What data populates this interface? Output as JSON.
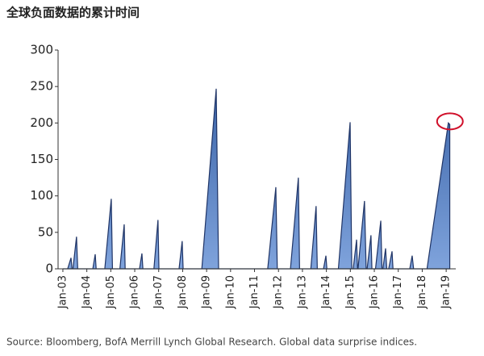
{
  "chart_data": {
    "type": "area",
    "title": "全球负面数据的累计时间",
    "source": "Source: Bloomberg, BofA Merrill Lynch Global Research. Global data surprise indices.",
    "color": "#4a74b8",
    "xlim": [
      2002.8,
      2019.4
    ],
    "xticks": [
      {
        "value": 2003,
        "label": "Jan-03"
      },
      {
        "value": 2004,
        "label": "Jan-04"
      },
      {
        "value": 2005,
        "label": "Jan-05"
      },
      {
        "value": 2006,
        "label": "Jan-06"
      },
      {
        "value": 2007,
        "label": "Jan-07"
      },
      {
        "value": 2008,
        "label": "Jan-08"
      },
      {
        "value": 2009,
        "label": "Jan-09"
      },
      {
        "value": 2010,
        "label": "Jan-10"
      },
      {
        "value": 2011,
        "label": "Jan-11"
      },
      {
        "value": 2012,
        "label": "Jan-12"
      },
      {
        "value": 2013,
        "label": "Jan-13"
      },
      {
        "value": 2014,
        "label": "Jan-14"
      },
      {
        "value": 2015,
        "label": "Jan-15"
      },
      {
        "value": 2016,
        "label": "Jan-16"
      },
      {
        "value": 2017,
        "label": "Jan-17"
      },
      {
        "value": 2018,
        "label": "Jan-18"
      },
      {
        "value": 2019,
        "label": "Jan-19"
      }
    ],
    "ylim": [
      0,
      300
    ],
    "yticks": [
      0,
      50,
      100,
      150,
      200,
      250,
      300
    ],
    "x": [
      2003.0,
      2003.2,
      2003.34,
      2003.38,
      2003.42,
      2003.57,
      2003.62,
      2004.25,
      2004.35,
      2004.39,
      2004.75,
      2005.02,
      2005.07,
      2005.38,
      2005.56,
      2005.6,
      2006.2,
      2006.3,
      2006.34,
      2006.8,
      2006.97,
      2007.01,
      2007.85,
      2007.98,
      2008.02,
      2008.8,
      2009.4,
      2009.5,
      2011.55,
      2011.89,
      2011.95,
      2012.5,
      2012.83,
      2012.88,
      2013.35,
      2013.57,
      2013.62,
      2013.88,
      2013.98,
      2014.02,
      2014.5,
      2014.99,
      2015.06,
      2015.12,
      2015.26,
      2015.3,
      2015.32,
      2015.59,
      2015.66,
      2015.7,
      2015.86,
      2015.9,
      2016.05,
      2016.27,
      2016.32,
      2016.36,
      2016.47,
      2016.52,
      2016.6,
      2016.74,
      2016.78,
      2017.48,
      2017.58,
      2017.64,
      2018.2,
      2019.09,
      2019.15
    ],
    "values": [
      0,
      0,
      15,
      0,
      0,
      44,
      0,
      0,
      20,
      0,
      0,
      96,
      0,
      0,
      61,
      0,
      0,
      21,
      0,
      0,
      67,
      0,
      0,
      38,
      0,
      0,
      247,
      0,
      0,
      112,
      0,
      0,
      125,
      0,
      0,
      86,
      0,
      0,
      18,
      0,
      0,
      201,
      0,
      0,
      40,
      0,
      0,
      93,
      0,
      0,
      46,
      0,
      0,
      66,
      0,
      0,
      28,
      0,
      0,
      24,
      0,
      0,
      18,
      0,
      0,
      200,
      198
    ]
  }
}
